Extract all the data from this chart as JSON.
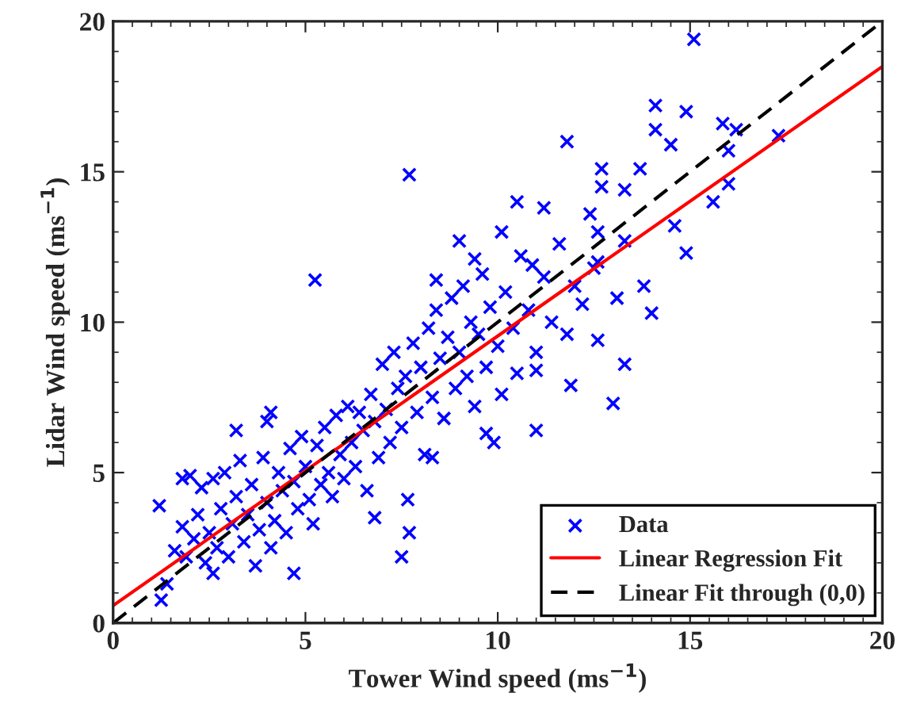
{
  "chart_data": {
    "type": "scatter",
    "xlabel": "Tower Wind speed (ms$^{−1}$)",
    "ylabel": "Lidar Wind speed (ms$^{−1}$)",
    "xlim": [
      0,
      20
    ],
    "ylim": [
      0,
      20
    ],
    "xticks": [
      0,
      5,
      10,
      15,
      20
    ],
    "yticks": [
      0,
      5,
      10,
      15,
      20
    ],
    "grid": false,
    "legend": "bottom right",
    "series": [
      {
        "name": "Data",
        "color": "#0000ff",
        "marker": "cross",
        "x": [
          1.25,
          1.2,
          1.4,
          1.8,
          1.9,
          2.6,
          3.2,
          4.1,
          4.0,
          4.7,
          5.25,
          6.8,
          7.5,
          7.66,
          7.7,
          8.3,
          9.7,
          9.9,
          11.0,
          11.0,
          11.9,
          12.6,
          13.0,
          13.3,
          14.0,
          13.1,
          13.8,
          14.9,
          14.6,
          15.6,
          16.0,
          13.3,
          12.7,
          12.7,
          13.7,
          14.5,
          16.0,
          17.3,
          16.2,
          15.85,
          14.9,
          14.1,
          14.1,
          11.8,
          7.7,
          15.1,
          10.5,
          11.2,
          9.0,
          9.4,
          10.1,
          8.4,
          10.9,
          12.6,
          13.3,
          12.5,
          1.6,
          1.8,
          2.0,
          2.1,
          2.2,
          2.3,
          2.4,
          2.5,
          2.6,
          2.7,
          2.8,
          2.9,
          3.0,
          3.1,
          3.2,
          3.3,
          3.4,
          3.5,
          3.6,
          3.7,
          3.8,
          3.9,
          4.0,
          4.1,
          4.2,
          4.3,
          4.4,
          4.5,
          4.6,
          4.7,
          4.8,
          4.9,
          5.0,
          5.1,
          5.2,
          5.3,
          5.4,
          5.5,
          5.6,
          5.7,
          5.8,
          5.9,
          6.0,
          6.1,
          6.2,
          6.3,
          6.4,
          6.5,
          6.6,
          6.7,
          6.8,
          6.9,
          7.0,
          7.1,
          7.2,
          7.3,
          7.4,
          7.5,
          7.6,
          7.8,
          7.9,
          8.0,
          8.1,
          8.2,
          8.3,
          8.4,
          8.5,
          8.6,
          8.7,
          8.8,
          8.9,
          9.0,
          9.1,
          9.2,
          9.3,
          9.4,
          9.5,
          9.6,
          9.7,
          9.8,
          10.0,
          10.1,
          10.2,
          10.4,
          10.5,
          10.6,
          10.8,
          11.0,
          11.2,
          11.4,
          11.6,
          11.8,
          12.0,
          12.2,
          12.4,
          12.6
        ],
        "values": [
          0.76,
          3.9,
          1.3,
          4.8,
          2.2,
          1.65,
          6.4,
          7.0,
          6.7,
          1.65,
          11.4,
          3.5,
          2.2,
          4.1,
          3.0,
          5.5,
          6.3,
          6.0,
          6.4,
          8.4,
          7.9,
          9.4,
          7.3,
          8.6,
          10.3,
          10.8,
          11.2,
          12.3,
          13.2,
          14.0,
          14.6,
          14.4,
          15.1,
          14.5,
          15.1,
          15.9,
          15.7,
          16.2,
          16.4,
          16.6,
          17.0,
          17.2,
          16.4,
          16.0,
          14.9,
          19.4,
          14.0,
          13.8,
          12.7,
          12.1,
          13.0,
          11.4,
          11.9,
          13.0,
          12.7,
          11.8,
          2.4,
          3.2,
          4.9,
          2.8,
          3.6,
          4.5,
          2.0,
          3.0,
          4.8,
          2.5,
          3.8,
          5.0,
          2.2,
          3.3,
          4.2,
          5.4,
          2.7,
          3.6,
          4.6,
          1.9,
          3.1,
          5.5,
          4.0,
          2.5,
          3.4,
          5.0,
          4.4,
          3.0,
          5.8,
          4.7,
          3.8,
          6.2,
          5.2,
          4.1,
          3.3,
          5.9,
          4.6,
          6.5,
          5.0,
          4.2,
          6.9,
          5.6,
          4.8,
          7.2,
          6.0,
          5.2,
          7.0,
          6.4,
          4.4,
          7.6,
          6.7,
          5.5,
          8.6,
          7.1,
          6.0,
          9.0,
          7.8,
          6.5,
          8.2,
          9.3,
          7.0,
          8.5,
          5.6,
          9.8,
          7.5,
          10.4,
          8.8,
          6.8,
          9.5,
          10.8,
          7.8,
          9.0,
          11.2,
          8.2,
          10.0,
          7.2,
          9.6,
          11.6,
          8.5,
          10.5,
          9.2,
          7.6,
          11.0,
          9.8,
          8.3,
          12.2,
          10.4,
          9.0,
          11.5,
          10.0,
          12.6,
          9.6,
          11.2,
          10.6,
          13.6,
          12.0
        ]
      },
      {
        "name": "Linear Regression Fit",
        "type": "line",
        "color": "#ff0000",
        "line_style": "solid",
        "x": [
          0,
          20
        ],
        "values": [
          0.58,
          18.5
        ]
      },
      {
        "name": "Linear Fit through (0,0)",
        "type": "line",
        "color": "#000000",
        "line_style": "dashed",
        "x": [
          0,
          20
        ],
        "values": [
          0,
          20
        ]
      }
    ]
  }
}
